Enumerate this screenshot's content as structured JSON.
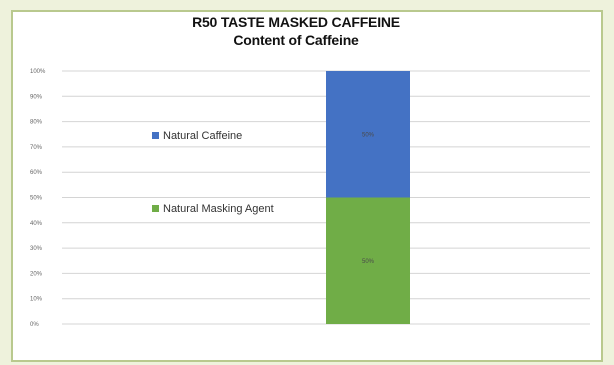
{
  "chart_data": {
    "type": "bar",
    "stacked": true,
    "percent": true,
    "title": "R50 TASTE MASKED CAFFEINE",
    "subtitle": "Content of Caffeine",
    "categories": [
      ""
    ],
    "ylim": [
      0,
      100
    ],
    "yticks": [
      "0%",
      "10%",
      "20%",
      "30%",
      "40%",
      "50%",
      "60%",
      "70%",
      "80%",
      "90%",
      "100%"
    ],
    "series": [
      {
        "name": "Natural Masking Agent",
        "values": [
          50
        ],
        "label": "50%",
        "color": "#70ad47"
      },
      {
        "name": "Natural Caffeine",
        "values": [
          50
        ],
        "label": "50%",
        "color": "#4472c4"
      }
    ],
    "legend_position": "left",
    "grid": true
  }
}
